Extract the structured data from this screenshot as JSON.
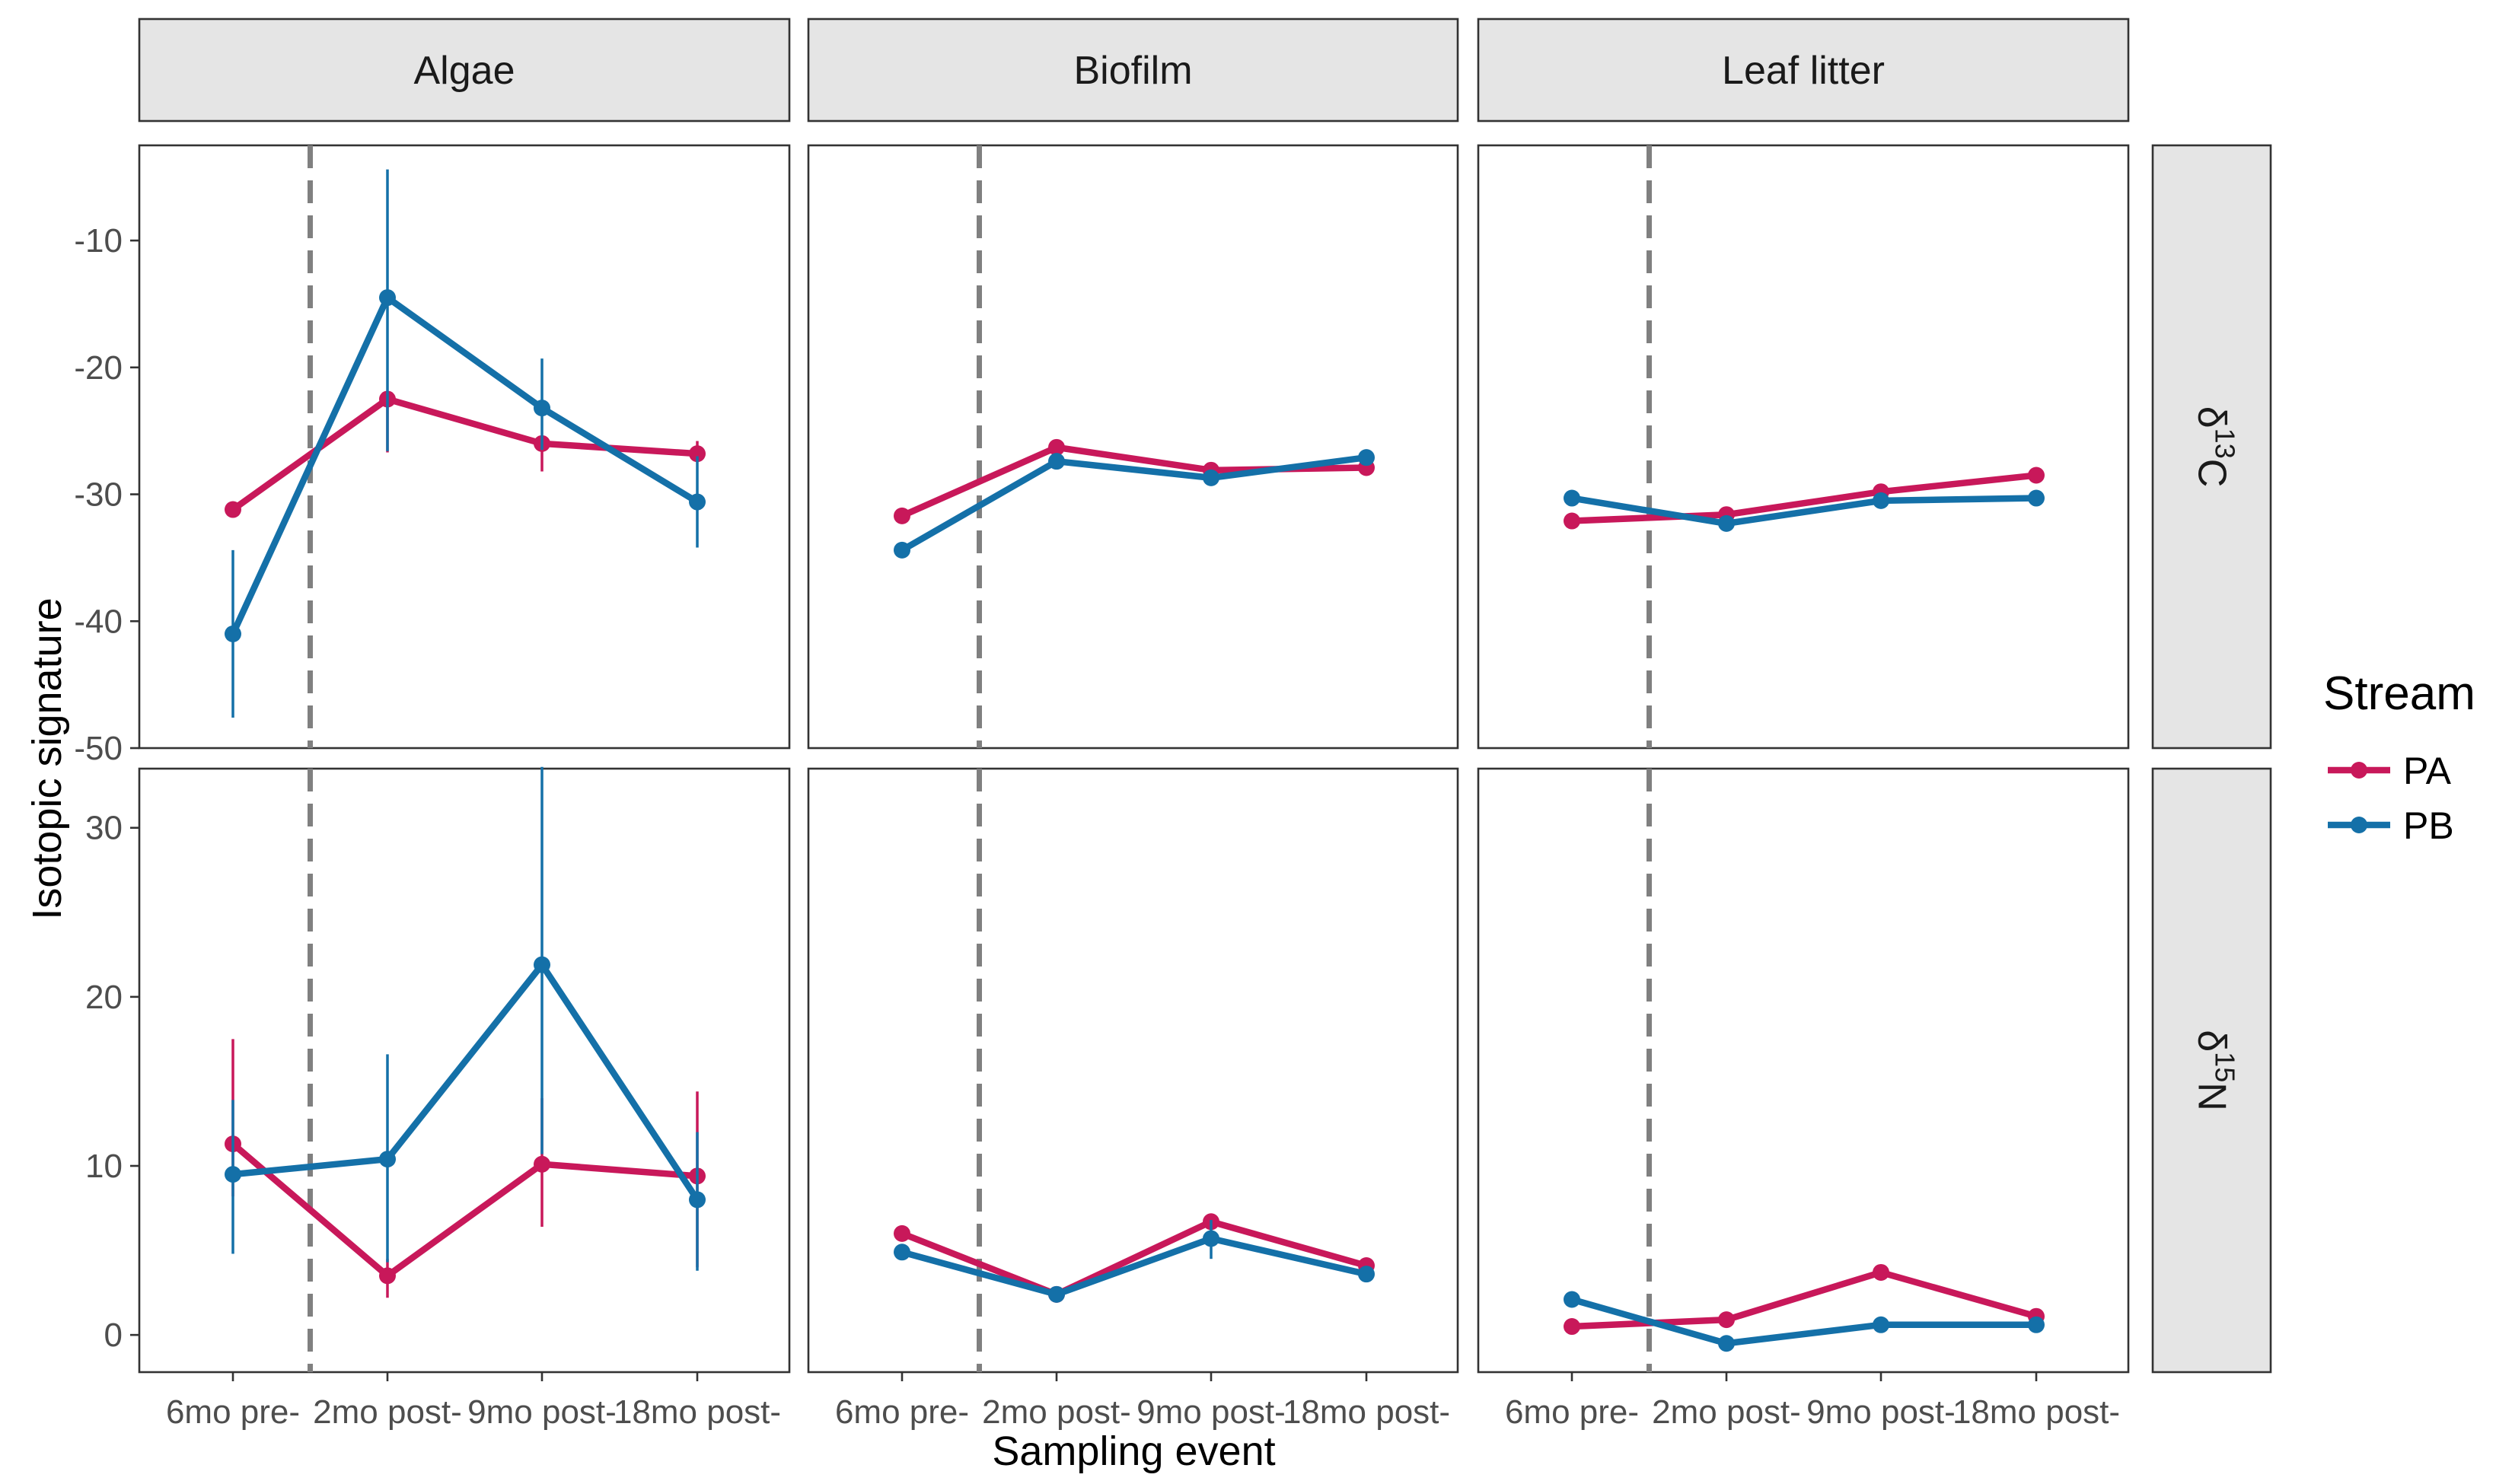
{
  "chart_data": {
    "type": "line",
    "xlabel": "Sampling event",
    "ylabel": "Isotopic signature",
    "categories": [
      "6mo pre-",
      "2mo post-",
      "9mo post-",
      "18mo post-"
    ],
    "reference_line": {
      "position": 1.5,
      "style": "dashed",
      "color": "#808080"
    },
    "facet_columns": [
      "Algae",
      "Biofilm",
      "Leaf litter"
    ],
    "facet_rows": [
      {
        "key": "d13C",
        "symbol": "δ",
        "superscript": "13",
        "element": "C"
      },
      {
        "key": "d15N",
        "symbol": "δ",
        "superscript": "15",
        "element": "N"
      }
    ],
    "row_scales": {
      "d13C": {
        "ylim": [
          -50,
          -2.5
        ],
        "ticks": [
          "-10",
          "-20",
          "-30",
          "-40",
          "-50"
        ]
      },
      "d15N": {
        "ylim": [
          -2.2,
          33.5
        ],
        "ticks": [
          "0",
          "10",
          "20",
          "30"
        ]
      }
    },
    "legend": {
      "title": "Stream",
      "position": "right"
    },
    "series_styles": [
      {
        "name": "PA",
        "color": "#c8185a"
      },
      {
        "name": "PB",
        "color": "#1470a8"
      }
    ],
    "panels": [
      {
        "row": "d13C",
        "column": "Algae",
        "series": [
          {
            "name": "PA",
            "values": [
              -31.2,
              -22.5,
              -26.0,
              -26.8
            ],
            "error": [
              [
                -31.2,
                -31.2
              ],
              [
                -26.7,
                -22.5
              ],
              [
                -28.2,
                -26.0
              ],
              [
                -27.0,
                -25.8
              ]
            ]
          },
          {
            "name": "PB",
            "values": [
              -41.0,
              -14.5,
              -23.2,
              -30.6
            ],
            "error": [
              [
                -47.6,
                -34.4
              ],
              [
                -26.6,
                -4.4
              ],
              [
                -26.5,
                -19.3
              ],
              [
                -34.2,
                -27.0
              ]
            ]
          }
        ]
      },
      {
        "row": "d13C",
        "column": "Biofilm",
        "series": [
          {
            "name": "PA",
            "values": [
              -31.7,
              -26.3,
              -28.1,
              -27.9
            ],
            "error": null
          },
          {
            "name": "PB",
            "values": [
              -34.4,
              -27.4,
              -28.7,
              -27.1
            ],
            "error": null
          }
        ]
      },
      {
        "row": "d13C",
        "column": "Leaf litter",
        "series": [
          {
            "name": "PA",
            "values": [
              -32.1,
              -31.6,
              -29.8,
              -28.5
            ],
            "error": null
          },
          {
            "name": "PB",
            "values": [
              -30.3,
              -32.3,
              -30.5,
              -30.3
            ],
            "error": null
          }
        ]
      },
      {
        "row": "d15N",
        "column": "Algae",
        "series": [
          {
            "name": "PA",
            "values": [
              11.3,
              3.5,
              10.1,
              9.4
            ],
            "error": [
              [
                8.2,
                17.5
              ],
              [
                2.2,
                4.5
              ],
              [
                6.4,
                14.0
              ],
              [
                4.0,
                14.4
              ]
            ]
          },
          {
            "name": "PB",
            "values": [
              9.5,
              10.4,
              21.9,
              8.0
            ],
            "error": [
              [
                4.8,
                13.9
              ],
              [
                4.3,
                16.6
              ],
              [
                10.7,
                33.6
              ],
              [
                3.8,
                12.0
              ]
            ]
          }
        ]
      },
      {
        "row": "d15N",
        "column": "Biofilm",
        "series": [
          {
            "name": "PA",
            "values": [
              6.0,
              2.4,
              6.7,
              4.1
            ],
            "error": null
          },
          {
            "name": "PB",
            "values": [
              4.9,
              2.4,
              5.7,
              3.6
            ],
            "error": [
              null,
              null,
              [
                4.5,
                6.8
              ],
              null
            ]
          }
        ]
      },
      {
        "row": "d15N",
        "column": "Leaf litter",
        "series": [
          {
            "name": "PA",
            "values": [
              0.5,
              0.9,
              3.7,
              1.1
            ],
            "error": null
          },
          {
            "name": "PB",
            "values": [
              2.1,
              -0.5,
              0.6,
              0.6
            ],
            "error": null
          }
        ]
      }
    ]
  }
}
